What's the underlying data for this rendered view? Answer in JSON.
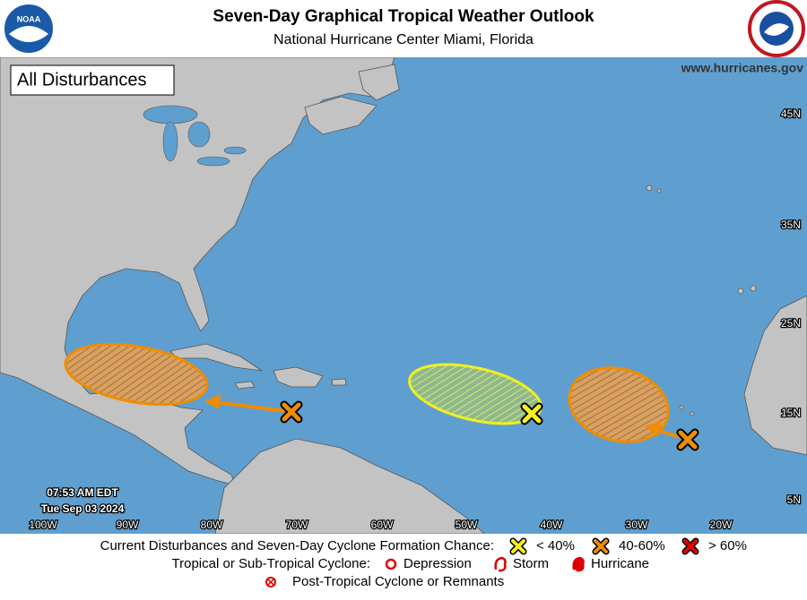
{
  "header": {
    "title": "Seven-Day Graphical Tropical Weather Outlook",
    "subtitle": "National Hurricane Center  Miami, Florida"
  },
  "map": {
    "panel_label": "All Disturbances",
    "website": "www.hurricanes.gov",
    "lat_labels": [
      "45N",
      "35N",
      "25N",
      "15N",
      "5N"
    ],
    "lon_labels": [
      "100W",
      "90W",
      "80W",
      "70W",
      "60W",
      "50W",
      "40W",
      "30W",
      "20W"
    ],
    "time": "07:53 AM EDT",
    "date": "Tue Sep 03 2024"
  },
  "legend": {
    "formation_label": "Current Disturbances and Seven-Day Cyclone Formation Chance:",
    "chances": [
      "< 40%",
      "40-60%",
      "> 60%"
    ],
    "cyclone_label": "Tropical or Sub-Tropical Cyclone:",
    "cyclone_types": [
      "Depression",
      "Storm",
      "Hurricane"
    ],
    "post_tropical": "Post-Tropical Cyclone or Remnants"
  }
}
